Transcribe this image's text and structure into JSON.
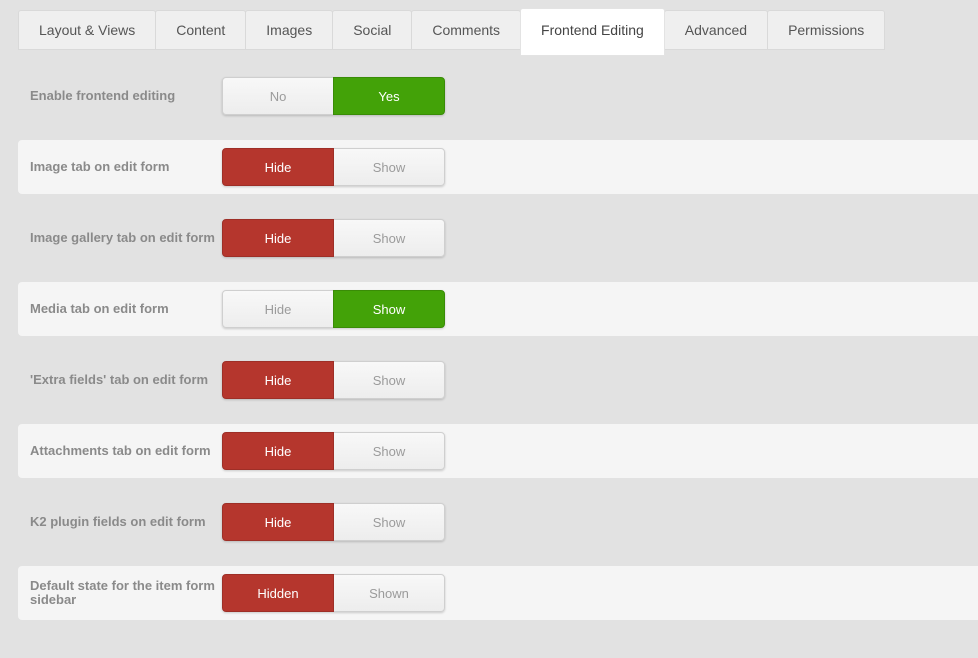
{
  "colors": {
    "page_bg": "#e2e2e2",
    "band_bg": "#f5f5f5",
    "green": "#43a208",
    "red": "#b5362d"
  },
  "tab_bar": {
    "tabs": [
      {
        "label": "Layout & Views",
        "active": false
      },
      {
        "label": "Content",
        "active": false
      },
      {
        "label": "Images",
        "active": false
      },
      {
        "label": "Social",
        "active": false
      },
      {
        "label": "Comments",
        "active": false
      },
      {
        "label": "Frontend Editing",
        "active": true
      },
      {
        "label": "Advanced",
        "active": false
      },
      {
        "label": "Permissions",
        "active": false
      }
    ]
  },
  "settings": {
    "rows": [
      {
        "label": "Enable frontend editing",
        "banded": false,
        "options": [
          {
            "label": "No",
            "state": "off"
          },
          {
            "label": "Yes",
            "state": "green"
          }
        ]
      },
      {
        "label": "Image tab on edit form",
        "banded": true,
        "options": [
          {
            "label": "Hide",
            "state": "red"
          },
          {
            "label": "Show",
            "state": "off"
          }
        ]
      },
      {
        "label": "Image gallery tab on edit form",
        "banded": false,
        "options": [
          {
            "label": "Hide",
            "state": "red"
          },
          {
            "label": "Show",
            "state": "off"
          }
        ]
      },
      {
        "label": "Media tab on edit form",
        "banded": true,
        "options": [
          {
            "label": "Hide",
            "state": "off"
          },
          {
            "label": "Show",
            "state": "green"
          }
        ]
      },
      {
        "label": "'Extra fields' tab on edit form",
        "banded": false,
        "options": [
          {
            "label": "Hide",
            "state": "red"
          },
          {
            "label": "Show",
            "state": "off"
          }
        ]
      },
      {
        "label": "Attachments tab on edit form",
        "banded": true,
        "options": [
          {
            "label": "Hide",
            "state": "red"
          },
          {
            "label": "Show",
            "state": "off"
          }
        ]
      },
      {
        "label": "K2 plugin fields on edit form",
        "banded": false,
        "options": [
          {
            "label": "Hide",
            "state": "red"
          },
          {
            "label": "Show",
            "state": "off"
          }
        ]
      },
      {
        "label": "Default state for the item form sidebar",
        "banded": true,
        "options": [
          {
            "label": "Hidden",
            "state": "red"
          },
          {
            "label": "Shown",
            "state": "off"
          }
        ]
      }
    ]
  }
}
